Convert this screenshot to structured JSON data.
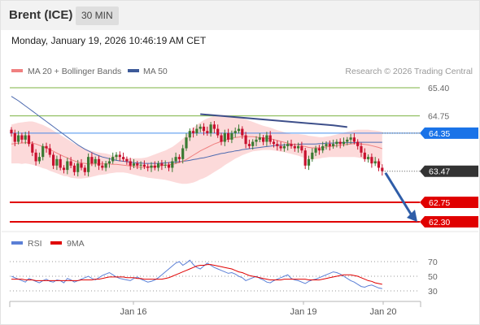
{
  "header": {
    "title": "Brent (ICE)",
    "timeframe": "30 MIN"
  },
  "timestamp": "Monday, January 19, 2026 10:46:19 AM CET",
  "legend": {
    "bollinger": {
      "label": "MA 20 + Bollinger Bands",
      "color": "#f08080"
    },
    "ma50": {
      "label": "MA 50",
      "color": "#3d5a99"
    },
    "credit": "Research © 2026 Trading Central"
  },
  "rsi_legend": {
    "rsi": {
      "label": "RSI",
      "color": "#5b7fd6"
    },
    "ma9": {
      "label": "9MA",
      "color": "#e00000"
    }
  },
  "colors": {
    "bull": "#3a7a32",
    "bear": "#c8102e",
    "band_fill": "#fbd4d4",
    "level_green": "#7cb342",
    "level_red": "#e00000",
    "tag_blue": "#1a73e8",
    "tag_dark": "#333333",
    "trend": "#3d4f8a",
    "arrow": "#2f5da8"
  },
  "chart_data": {
    "type": "candlestick",
    "title": "Brent (ICE)",
    "timeframe": "30 MIN",
    "ylim": [
      62.15,
      65.55
    ],
    "x_ticks": [
      "Jan 16",
      "Jan 19",
      "Jan 20"
    ],
    "current_price": "63.47",
    "levels": [
      {
        "value": 65.4,
        "label": "65.40",
        "kind": "resistance"
      },
      {
        "value": 64.75,
        "label": "64.75",
        "kind": "resistance"
      },
      {
        "value": 64.35,
        "label": "64.35",
        "kind": "pivot"
      },
      {
        "value": 62.75,
        "label": "62.75",
        "kind": "support"
      },
      {
        "value": 62.3,
        "label": "62.30",
        "kind": "support"
      }
    ],
    "closes": [
      64.35,
      64.15,
      64.3,
      64.2,
      64.3,
      64.1,
      63.9,
      63.7,
      63.8,
      64.05,
      64.0,
      63.85,
      63.6,
      63.75,
      63.55,
      63.5,
      63.7,
      63.6,
      63.45,
      63.65,
      63.55,
      63.45,
      63.8,
      63.65,
      63.75,
      63.6,
      63.55,
      63.65,
      63.7,
      63.8,
      63.85,
      63.8,
      63.75,
      63.7,
      63.6,
      63.65,
      63.6,
      63.62,
      63.58,
      63.55,
      63.6,
      63.55,
      63.65,
      63.6,
      63.62,
      63.55,
      63.7,
      63.8,
      63.75,
      64.0,
      64.25,
      64.4,
      64.35,
      64.45,
      64.5,
      64.4,
      64.35,
      64.55,
      64.45,
      64.3,
      64.15,
      64.35,
      64.2,
      64.35,
      64.4,
      64.45,
      64.3,
      64.1,
      64.05,
      64.15,
      64.2,
      64.25,
      64.15,
      64.3,
      64.15,
      64.1,
      64.05,
      64.0,
      64.05,
      64.1,
      64.05,
      64.0,
      64.05,
      63.95,
      63.6,
      63.75,
      63.9,
      64.0,
      63.95,
      64.05,
      64.1,
      64.05,
      64.1,
      64.15,
      64.1,
      64.15,
      64.2,
      64.25,
      64.15,
      64.05,
      63.9,
      63.75,
      63.8,
      63.65,
      63.7,
      63.55,
      63.47
    ],
    "ma20": [
      64.1,
      64.11,
      64.12,
      64.12,
      64.13,
      64.13,
      64.12,
      64.1,
      64.07,
      64.04,
      64.01,
      63.97,
      63.93,
      63.89,
      63.85,
      63.81,
      63.78,
      63.74,
      63.71,
      63.68,
      63.66,
      63.65,
      63.64,
      63.64,
      63.64,
      63.64,
      63.64,
      63.64,
      63.64,
      63.63,
      63.63,
      63.62,
      63.61,
      63.6,
      63.59,
      63.58,
      63.57,
      63.56,
      63.56,
      63.56,
      63.57,
      63.58,
      63.59,
      63.6,
      63.61,
      63.62,
      63.63,
      63.65,
      63.67,
      63.7,
      63.74,
      63.79,
      63.84,
      63.89,
      63.94,
      63.98,
      64.02,
      64.06,
      64.1,
      64.13,
      64.16,
      64.19,
      64.21,
      64.23,
      64.25,
      64.26,
      64.27,
      64.27,
      64.27,
      64.27,
      64.26,
      64.25,
      64.24,
      64.23,
      64.22,
      64.2,
      64.18,
      64.16,
      64.14,
      64.12,
      64.1,
      64.09,
      64.08,
      64.06,
      64.04,
      64.02,
      64.01,
      64.01,
      64.01,
      64.02,
      64.03,
      64.04,
      64.05,
      64.06,
      64.07,
      64.08,
      64.09,
      64.1,
      64.11,
      64.11,
      64.1,
      64.09,
      64.08,
      64.06,
      64.04,
      64.02,
      63.99
    ],
    "ma50": [
      65.2,
      65.15,
      65.1,
      65.04,
      64.98,
      64.92,
      64.86,
      64.8,
      64.74,
      64.68,
      64.62,
      64.56,
      64.5,
      64.44,
      64.38,
      64.32,
      64.26,
      64.2,
      64.14,
      64.08,
      64.03,
      63.98,
      63.94,
      63.9,
      63.86,
      63.83,
      63.8,
      63.78,
      63.76,
      63.74,
      63.72,
      63.71,
      63.7,
      63.69,
      63.68,
      63.67,
      63.66,
      63.66,
      63.65,
      63.65,
      63.65,
      63.65,
      63.65,
      63.66,
      63.66,
      63.67,
      63.68,
      63.68,
      63.69,
      63.7,
      63.71,
      63.72,
      63.74,
      63.75,
      63.77,
      63.78,
      63.8,
      63.82,
      63.84,
      63.86,
      63.88,
      63.89,
      63.91,
      63.92,
      63.94,
      63.95,
      63.97,
      63.98,
      63.99,
      64.0,
      64.01,
      64.02,
      64.03,
      64.04,
      64.05,
      64.06,
      64.07,
      64.07,
      64.08,
      64.08,
      64.09,
      64.09,
      64.09,
      64.1,
      64.1,
      64.1,
      64.1,
      64.1,
      64.11,
      64.11,
      64.12,
      64.12,
      64.12,
      64.13,
      64.13,
      64.13,
      64.13,
      64.13,
      64.13,
      64.14,
      64.14,
      64.14,
      64.14,
      64.14,
      64.14,
      64.14,
      64.14
    ],
    "band_width": [
      0.45,
      0.46,
      0.47,
      0.48,
      0.48,
      0.49,
      0.5,
      0.5,
      0.5,
      0.5,
      0.49,
      0.49,
      0.48,
      0.47,
      0.46,
      0.45,
      0.43,
      0.42,
      0.4,
      0.38,
      0.36,
      0.34,
      0.32,
      0.3,
      0.28,
      0.26,
      0.25,
      0.24,
      0.22,
      0.2,
      0.19,
      0.18,
      0.17,
      0.17,
      0.18,
      0.19,
      0.2,
      0.21,
      0.22,
      0.24,
      0.26,
      0.28,
      0.3,
      0.32,
      0.34,
      0.37,
      0.4,
      0.44,
      0.48,
      0.52,
      0.56,
      0.6,
      0.63,
      0.65,
      0.66,
      0.67,
      0.67,
      0.66,
      0.65,
      0.63,
      0.61,
      0.58,
      0.55,
      0.52,
      0.49,
      0.46,
      0.43,
      0.4,
      0.37,
      0.34,
      0.32,
      0.3,
      0.28,
      0.27,
      0.26,
      0.25,
      0.24,
      0.24,
      0.23,
      0.23,
      0.23,
      0.24,
      0.25,
      0.26,
      0.27,
      0.27,
      0.27,
      0.26,
      0.25,
      0.24,
      0.24,
      0.24,
      0.25,
      0.26,
      0.27,
      0.28,
      0.29,
      0.3,
      0.31,
      0.32,
      0.33,
      0.34,
      0.35,
      0.36,
      0.37,
      0.38,
      0.39
    ],
    "trendline": [
      [
        54,
        64.79
      ],
      [
        92,
        64.53
      ],
      [
        96,
        64.49
      ]
    ],
    "projection": {
      "from": 63.47,
      "to": 62.3
    },
    "rsi": {
      "levels": [
        70,
        50,
        30
      ],
      "ylim": [
        18,
        80
      ],
      "rsi_values": [
        50,
        48,
        46,
        44,
        42,
        47,
        45,
        43,
        41,
        44,
        46,
        43,
        42,
        45,
        44,
        41,
        47,
        45,
        42,
        44,
        46,
        48,
        50,
        47,
        45,
        48,
        51,
        53,
        55,
        52,
        49,
        47,
        46,
        45,
        44,
        47,
        49,
        46,
        44,
        42,
        43,
        45,
        48,
        52,
        56,
        60,
        64,
        68,
        70,
        65,
        68,
        72,
        66,
        62,
        60,
        64,
        68,
        65,
        62,
        60,
        58,
        56,
        54,
        55,
        53,
        50,
        48,
        44,
        46,
        48,
        50,
        47,
        45,
        42,
        41,
        44,
        46,
        48,
        50,
        52,
        47,
        45,
        44,
        42,
        40,
        43,
        45,
        46,
        48,
        50,
        52,
        54,
        56,
        55,
        53,
        50,
        47,
        44,
        42,
        39,
        36,
        35,
        37,
        38,
        36,
        34,
        33
      ],
      "ma9_values": [
        46,
        46,
        46,
        46,
        45,
        45,
        45,
        44,
        44,
        44,
        44,
        44,
        44,
        44,
        44,
        44,
        44,
        44,
        44,
        44,
        45,
        45,
        45,
        45,
        46,
        46,
        47,
        48,
        49,
        49,
        49,
        49,
        49,
        48,
        48,
        48,
        47,
        47,
        46,
        46,
        46,
        46,
        46,
        46,
        47,
        48,
        50,
        52,
        54,
        56,
        58,
        60,
        62,
        64,
        65,
        65,
        66,
        66,
        65,
        64,
        63,
        62,
        61,
        60,
        58,
        56,
        55,
        53,
        51,
        50,
        49,
        48,
        47,
        46,
        45,
        45,
        45,
        45,
        46,
        46,
        46,
        46,
        46,
        46,
        46,
        45,
        45,
        45,
        45,
        46,
        47,
        48,
        49,
        50,
        51,
        52,
        52,
        52,
        51,
        50,
        48,
        46,
        44,
        43,
        41,
        40,
        39
      ]
    }
  }
}
